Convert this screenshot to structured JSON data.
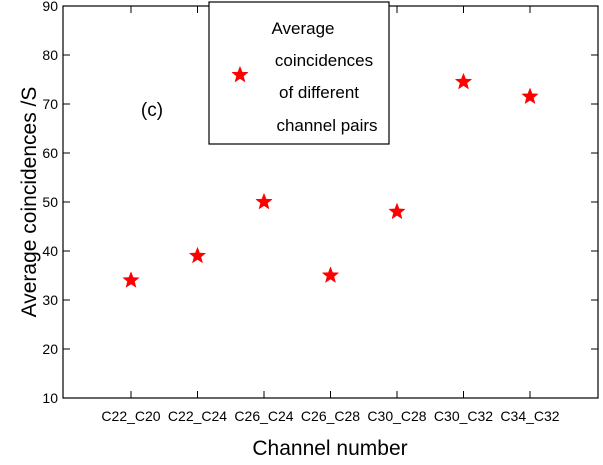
{
  "chart_data": {
    "type": "scatter",
    "categories": [
      "C22_C20",
      "C22_C24",
      "C26_C24",
      "C26_C28",
      "C30_C28",
      "C30_C32",
      "C34_C32"
    ],
    "series": [
      {
        "name": "Average coincidences of different channel pairs",
        "values": [
          34,
          39,
          50,
          35,
          48,
          74.5,
          71.5
        ],
        "marker": "star",
        "color": "#ff0000"
      }
    ],
    "legend_lines": [
      "Average",
      "coincidences",
      "of different",
      "channel pairs"
    ],
    "annotation": "(c)",
    "xlabel": "Channel number",
    "ylabel": "Average coincidences /S",
    "ylim": [
      10,
      90
    ],
    "yticks": [
      10,
      20,
      30,
      40,
      50,
      60,
      70,
      80,
      90
    ],
    "grid": false,
    "legend_position": "top-center"
  }
}
